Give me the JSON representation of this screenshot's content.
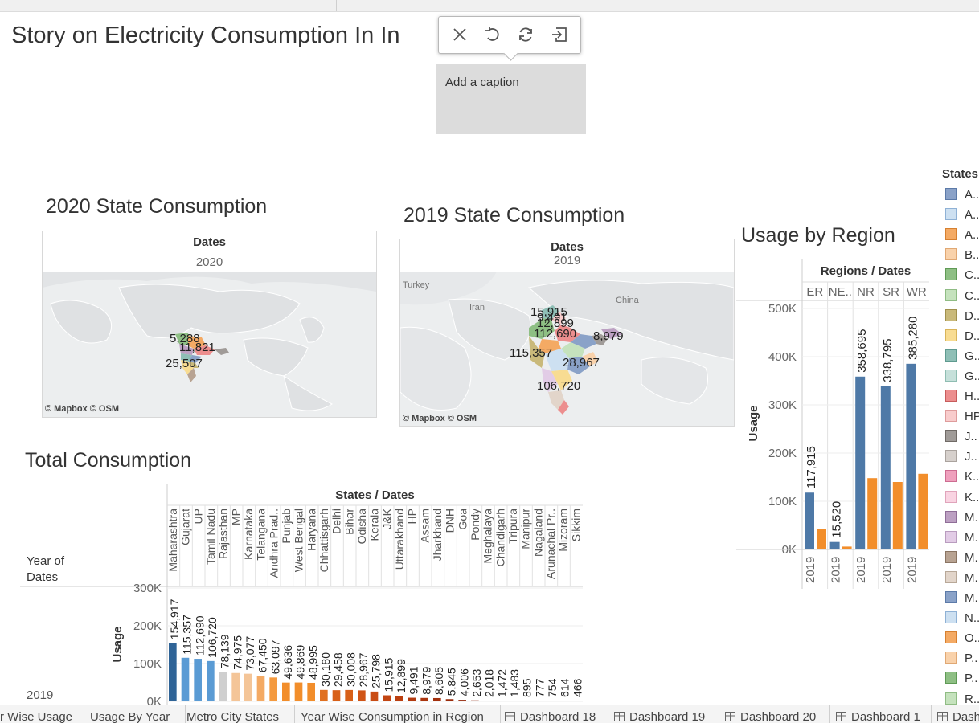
{
  "window": {
    "title": "Story on Electricity Consumption In In"
  },
  "caption_toolbar": {
    "close_icon": "close-icon",
    "revert_icon": "undo-icon",
    "refresh_icon": "refresh-icon",
    "exit_icon": "exit-icon"
  },
  "caption": {
    "text": "Add a caption"
  },
  "map2020": {
    "title": "2020 State Consumption",
    "header": "Dates",
    "year": "2020",
    "labels": [
      "5,288",
      "11,821",
      "25,507"
    ],
    "credit": "© Mapbox © OSM"
  },
  "map2019": {
    "title": "2019 State Consumption",
    "header": "Dates",
    "year": "2019",
    "places": [
      "Turkey",
      "Iran",
      "China"
    ],
    "labels": [
      "15,915",
      "9,491",
      "12,899",
      "112,690",
      "8,979",
      "115,357",
      "28,967",
      "106,720"
    ],
    "credit": "© Mapbox © OSM"
  },
  "region_chart": {
    "title": "Usage by Region",
    "header": "Regions / Dates",
    "regions": [
      "ER",
      "NE..",
      "NR",
      "SR",
      "WR"
    ],
    "ylabel": "Usage",
    "yticks": [
      "500K",
      "400K",
      "300K",
      "200K",
      "100K",
      "0K"
    ],
    "year_labels": [
      "2019",
      "2019",
      "2019",
      "2019",
      "2019"
    ],
    "bar_labels": [
      "117,915",
      "15,520",
      "358,695",
      "338,795",
      "385,280"
    ]
  },
  "total_chart": {
    "title": "Total Consumption",
    "header": "States / Dates",
    "row_header_1": "Year of",
    "row_header_2": "Dates",
    "row_value": "2019",
    "ylabel": "Usage",
    "yticks": [
      "300K",
      "200K",
      "100K",
      "0K"
    ],
    "states": [
      "Maharashtra",
      "Gujarat",
      "UP",
      "Tamil Nadu",
      "Rajasthan",
      "MP",
      "Karnataka",
      "Telangana",
      "Andhra Prad..",
      "Punjab",
      "West Bengal",
      "Haryana",
      "Chhattisgarh",
      "Delhi",
      "Bihar",
      "Odisha",
      "Kerala",
      "J&K",
      "Uttarakhand",
      "HP",
      "Assam",
      "Jharkhand",
      "DNH",
      "Goa",
      "Pondy",
      "Meghalaya",
      "Chandigarh",
      "Tripura",
      "Manipur",
      "Nagaland",
      "Arunachal Pr..",
      "Mizoram",
      "Sikkim"
    ],
    "value_labels": [
      "154,917",
      "115,357",
      "112,690",
      "106,720",
      "78,139",
      "74,975",
      "73,077",
      "67,450",
      "63,097",
      "49,636",
      "49,869",
      "48,995",
      "30,180",
      "29,458",
      "30,008",
      "28,967",
      "25,798",
      "15,915",
      "12,899",
      "9,491",
      "8,979",
      "8,605",
      "5,845",
      "4,006",
      "2,653",
      "2,018",
      "1,472",
      "1,483",
      "895",
      "777",
      "754",
      "614",
      "466"
    ]
  },
  "chart_data": [
    {
      "type": "bar",
      "title": "Usage by Region",
      "categories": [
        "ER",
        "NE..",
        "NR",
        "SR",
        "WR"
      ],
      "series": [
        {
          "values": [
            117915,
            15520,
            358695,
            338795,
            385280
          ]
        },
        {
          "values": [
            43000,
            6000,
            148000,
            140000,
            157000
          ]
        }
      ],
      "xlabel": "Regions / Dates",
      "ylabel": "Usage",
      "ylim": [
        0,
        500000
      ],
      "grid": true
    },
    {
      "type": "bar",
      "title": "Total Consumption",
      "categories": [
        "Maharashtra",
        "Gujarat",
        "UP",
        "Tamil Nadu",
        "Rajasthan",
        "MP",
        "Karnataka",
        "Telangana",
        "Andhra Prad..",
        "Punjab",
        "West Bengal",
        "Haryana",
        "Chhattisgarh",
        "Delhi",
        "Bihar",
        "Odisha",
        "Kerala",
        "J&K",
        "Uttarakhand",
        "HP",
        "Assam",
        "Jharkhand",
        "DNH",
        "Goa",
        "Pondy",
        "Meghalaya",
        "Chandigarh",
        "Tripura",
        "Manipur",
        "Nagaland",
        "Arunachal Pr..",
        "Mizoram",
        "Sikkim"
      ],
      "values": [
        154917,
        115357,
        112690,
        106720,
        78139,
        74975,
        73077,
        67450,
        63097,
        49636,
        49869,
        48995,
        30180,
        29458,
        30008,
        28967,
        25798,
        15915,
        12899,
        9491,
        8979,
        8605,
        5845,
        4006,
        2653,
        2018,
        1472,
        1483,
        895,
        777,
        754,
        614,
        466
      ],
      "xlabel": "States / Dates",
      "ylabel": "Usage",
      "ylim": [
        0,
        300000
      ],
      "grid": true
    }
  ],
  "legend": {
    "title": "States",
    "items": [
      {
        "label": "A..",
        "fill": "#8aa2c8",
        "border": "#5c7aa8"
      },
      {
        "label": "A..",
        "fill": "#cde0f1",
        "border": "#8fb1d5"
      },
      {
        "label": "A..",
        "fill": "#f4aa64",
        "border": "#d68030"
      },
      {
        "label": "B..",
        "fill": "#f9d2ab",
        "border": "#e0a874"
      },
      {
        "label": "C..",
        "fill": "#8ebf84",
        "border": "#5f9a55"
      },
      {
        "label": "C..",
        "fill": "#c5e2bd",
        "border": "#8fbc84"
      },
      {
        "label": "D..",
        "fill": "#c9b97a",
        "border": "#a0904d"
      },
      {
        "label": "D..",
        "fill": "#f8dc92",
        "border": "#d8b45a"
      },
      {
        "label": "G..",
        "fill": "#8fbfb6",
        "border": "#5e9a8f"
      },
      {
        "label": "G..",
        "fill": "#c6e0da",
        "border": "#8fbdb2"
      },
      {
        "label": "H..",
        "fill": "#ec8e8e",
        "border": "#c75c5c"
      },
      {
        "label": "HP",
        "fill": "#f8cccc",
        "border": "#de9c9c"
      },
      {
        "label": "J..",
        "fill": "#a09b98",
        "border": "#706a66"
      },
      {
        "label": "J..",
        "fill": "#d6d0cc",
        "border": "#aaa39e"
      },
      {
        "label": "K..",
        "fill": "#efa0bd",
        "border": "#cd6c91"
      },
      {
        "label": "K..",
        "fill": "#f9d4e2",
        "border": "#e0a4bb"
      },
      {
        "label": "M..",
        "fill": "#bca0c2",
        "border": "#8f6d97"
      },
      {
        "label": "M..",
        "fill": "#e2cce6",
        "border": "#b99cbf"
      },
      {
        "label": "M..",
        "fill": "#b8a392",
        "border": "#8a7462"
      },
      {
        "label": "M..",
        "fill": "#e2d5ca",
        "border": "#b8a898"
      },
      {
        "label": "M..",
        "fill": "#8aa2c8",
        "border": "#5c7aa8"
      },
      {
        "label": "N..",
        "fill": "#cde0f1",
        "border": "#8fb1d5"
      },
      {
        "label": "O..",
        "fill": "#f4aa64",
        "border": "#d68030"
      },
      {
        "label": "P..",
        "fill": "#f9d2ab",
        "border": "#e0a874"
      },
      {
        "label": "P..",
        "fill": "#8ebf84",
        "border": "#5f9a55"
      },
      {
        "label": "R..",
        "fill": "#c5e2bd",
        "border": "#8fbc84"
      }
    ]
  },
  "tabs": [
    {
      "label": "r Wise Usage",
      "icon": ""
    },
    {
      "label": "Usage By Year",
      "icon": ""
    },
    {
      "label": "Metro City States",
      "icon": ""
    },
    {
      "label": "Year Wise Consumption in Region",
      "icon": ""
    },
    {
      "label": "Dashboard 18",
      "icon": "dashboard-icon"
    },
    {
      "label": "Dashboard 19",
      "icon": "dashboard-icon"
    },
    {
      "label": "Dashboard 20",
      "icon": "dashboard-icon"
    },
    {
      "label": "Dashboard 1",
      "icon": "dashboard-icon"
    },
    {
      "label": "Dash",
      "icon": "dashboard-icon"
    }
  ]
}
